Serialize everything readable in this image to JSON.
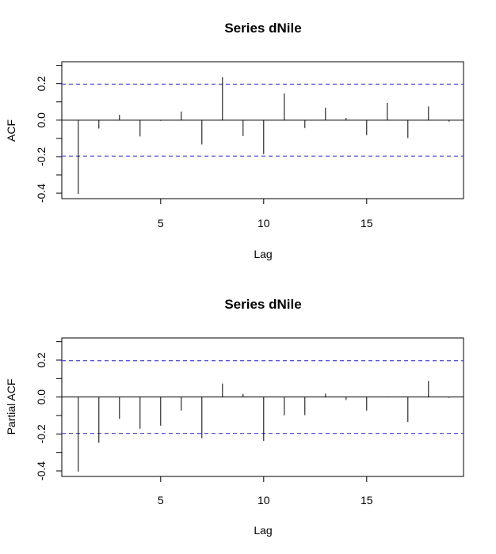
{
  "chart_data": [
    {
      "type": "bar",
      "subtype": "acf",
      "title": "Series  dNile",
      "xlabel": "Lag",
      "ylabel": "ACF",
      "xlim": [
        0.2,
        19.7
      ],
      "ylim": [
        -0.43,
        0.32
      ],
      "xticks": [
        5,
        10,
        15
      ],
      "yticks": [
        -0.4,
        -0.3,
        -0.2,
        -0.1,
        0.0,
        0.1,
        0.2,
        0.3
      ],
      "ytick_labels": [
        "-0.4",
        "",
        "-0.2",
        "",
        "0.0",
        "",
        "0.2",
        ""
      ],
      "ci": 0.197,
      "ci_color": "#5555ee",
      "lags": [
        1,
        2,
        3,
        4,
        5,
        6,
        7,
        8,
        9,
        10,
        11,
        12,
        13,
        14,
        15,
        16,
        17,
        18,
        19
      ],
      "values": [
        -0.404,
        -0.046,
        0.029,
        -0.089,
        -0.004,
        0.047,
        -0.133,
        0.236,
        -0.087,
        -0.186,
        0.146,
        -0.043,
        0.068,
        0.012,
        -0.082,
        0.095,
        -0.098,
        0.075,
        -0.008
      ]
    },
    {
      "type": "bar",
      "subtype": "pacf",
      "title": "Series  dNile",
      "xlabel": "Lag",
      "ylabel": "Partial ACF",
      "xlim": [
        0.2,
        19.7
      ],
      "ylim": [
        -0.43,
        0.32
      ],
      "xticks": [
        5,
        10,
        15
      ],
      "yticks": [
        -0.4,
        -0.3,
        -0.2,
        -0.1,
        0.0,
        0.1,
        0.2,
        0.3
      ],
      "ytick_labels": [
        "-0.4",
        "",
        "-0.2",
        "",
        "0.0",
        "",
        "0.2",
        ""
      ],
      "ci": 0.197,
      "ci_color": "#5555ee",
      "lags": [
        1,
        2,
        3,
        4,
        5,
        6,
        7,
        8,
        9,
        10,
        11,
        12,
        13,
        14,
        15,
        16,
        17,
        18,
        19
      ],
      "values": [
        -0.404,
        -0.248,
        -0.118,
        -0.172,
        -0.155,
        -0.073,
        -0.223,
        0.073,
        0.017,
        -0.237,
        -0.099,
        -0.098,
        0.018,
        -0.016,
        -0.073,
        -0.002,
        -0.135,
        0.087,
        -0.004
      ]
    }
  ]
}
